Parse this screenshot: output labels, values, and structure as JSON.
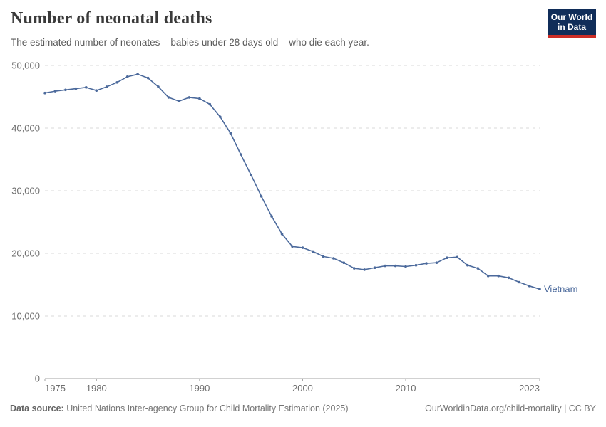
{
  "header": {
    "title": "Number of neonatal deaths",
    "subtitle": "The estimated number of neonates – babies under 28 days old – who die each year.",
    "logo": {
      "line1": "Our World",
      "line2": "in Data",
      "bg": "#102d59",
      "accent": "#cc2d26"
    }
  },
  "chart_data": {
    "type": "line",
    "title": "Number of neonatal deaths",
    "x": [
      1975,
      1976,
      1977,
      1978,
      1979,
      1980,
      1981,
      1982,
      1983,
      1984,
      1985,
      1986,
      1987,
      1988,
      1989,
      1990,
      1991,
      1992,
      1993,
      1994,
      1995,
      1996,
      1997,
      1998,
      1999,
      2000,
      2001,
      2002,
      2003,
      2004,
      2005,
      2006,
      2007,
      2008,
      2009,
      2010,
      2011,
      2012,
      2013,
      2014,
      2015,
      2016,
      2017,
      2018,
      2019,
      2020,
      2021,
      2022,
      2023
    ],
    "series": [
      {
        "name": "Vietnam",
        "color": "#4c6a9c",
        "values": [
          45600,
          45900,
          46100,
          46300,
          46500,
          46000,
          46600,
          47300,
          48200,
          48600,
          48000,
          46600,
          44900,
          44300,
          44900,
          44700,
          43800,
          41800,
          39200,
          35800,
          32500,
          29100,
          25900,
          23100,
          21100,
          20900,
          20300,
          19500,
          19200,
          18500,
          17600,
          17400,
          17700,
          18000,
          18000,
          17900,
          18100,
          18400,
          18500,
          19300,
          19400,
          18100,
          17600,
          16400,
          16400,
          16100,
          15400,
          14800,
          14300
        ]
      }
    ],
    "xlim": [
      1975,
      2023
    ],
    "ylim": [
      0,
      50000
    ],
    "x_ticks": [
      1975,
      1980,
      1990,
      2000,
      2010,
      2023
    ],
    "y_ticks": [
      0,
      10000,
      20000,
      30000,
      40000,
      50000
    ],
    "y_tick_labels": [
      "0",
      "10,000",
      "20,000",
      "30,000",
      "40,000",
      "50,000"
    ],
    "grid": "horizontal-dashed",
    "legend_position": "line-end-label",
    "colors": {
      "grid": "#d9d9d9",
      "axis": "#a3a3a3",
      "tick_label": "#6e6e6e"
    }
  },
  "footer": {
    "source_label": "Data source:",
    "source_text": " United Nations Inter-agency Group for Child Mortality Estimation (2025)",
    "link_text": "OurWorldinData.org/child-mortality | CC BY"
  }
}
